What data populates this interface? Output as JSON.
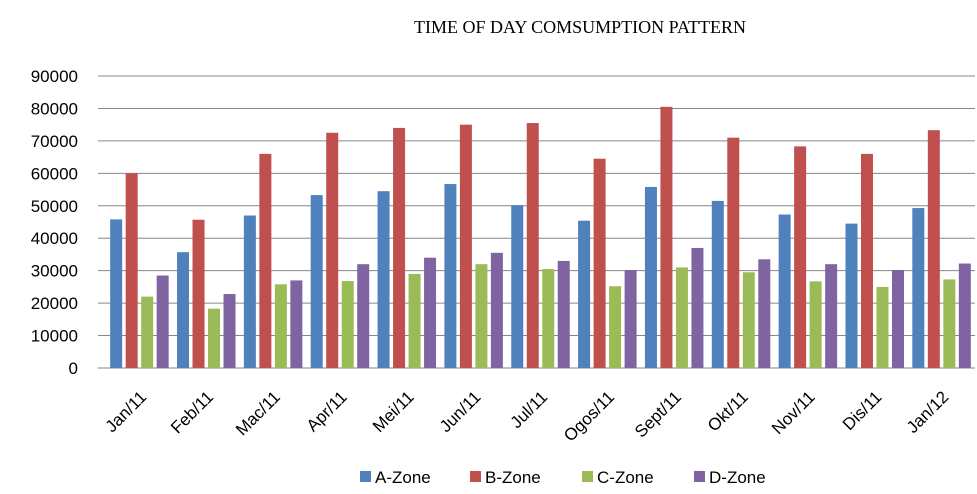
{
  "chart_data": {
    "type": "bar",
    "title": "TIME OF DAY COMSUMPTION PATTERN",
    "categories": [
      "Jan/11",
      "Feb/11",
      "Mac/11",
      "Apr/11",
      "Mei/11",
      "Jun/11",
      "Jul/11",
      "Ogos/11",
      "Sept/11",
      "Okt/11",
      "Nov/11",
      "Dis/11",
      "Jan/12"
    ],
    "series": [
      {
        "name": "A-Zone",
        "color": "#4f81bd",
        "values": [
          45800,
          35700,
          47000,
          53300,
          54500,
          56700,
          50200,
          45400,
          55800,
          51500,
          47300,
          44500,
          49300
        ]
      },
      {
        "name": "B-Zone",
        "color": "#c0504d",
        "values": [
          60000,
          45700,
          66000,
          72500,
          74000,
          75000,
          75500,
          64500,
          80500,
          71000,
          68300,
          66000,
          73300
        ]
      },
      {
        "name": "C-Zone",
        "color": "#9bbb59",
        "values": [
          22000,
          18300,
          25800,
          26800,
          29000,
          32000,
          30500,
          25200,
          31000,
          29500,
          26700,
          25000,
          27300
        ]
      },
      {
        "name": "D-Zone",
        "color": "#8064a2",
        "values": [
          28500,
          22800,
          27000,
          32000,
          34000,
          35500,
          33000,
          30200,
          37000,
          33500,
          32000,
          30200,
          32200
        ]
      }
    ],
    "ylim": [
      0,
      90000
    ],
    "yticks": [
      0,
      10000,
      20000,
      30000,
      40000,
      50000,
      60000,
      70000,
      80000,
      90000
    ],
    "grid": true,
    "legend": "bottom"
  }
}
